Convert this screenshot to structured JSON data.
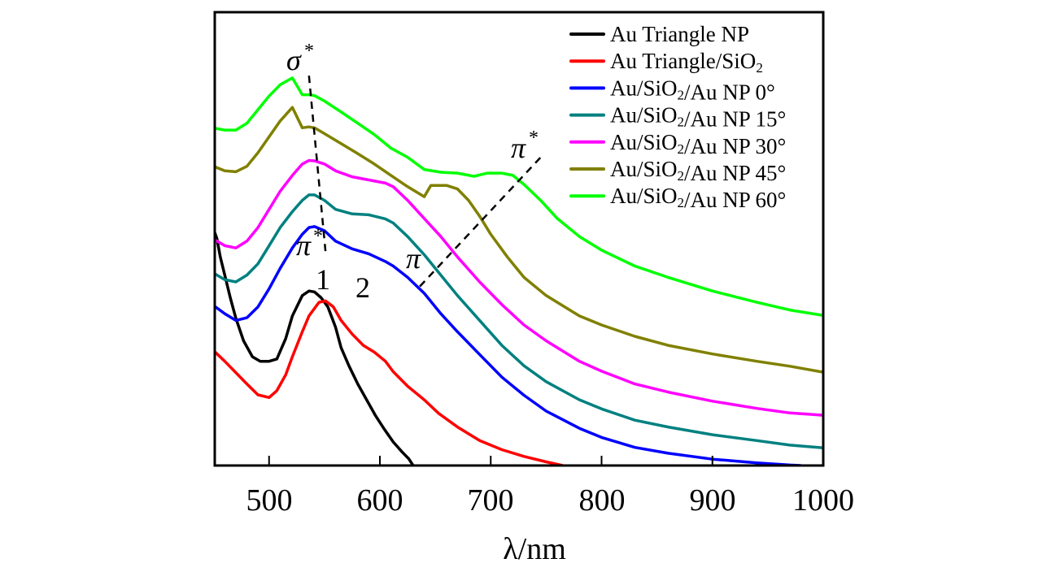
{
  "chart_data": {
    "type": "line",
    "title": "",
    "xlabel": "λ/nm",
    "ylabel": "",
    "xlim": [
      451,
      1000
    ],
    "ylim": [
      0,
      100
    ],
    "xticks": [
      500,
      600,
      700,
      800,
      900,
      1000
    ],
    "xtick_labels": [
      "500",
      "600",
      "700",
      "800",
      "900",
      "1000"
    ],
    "yticks": [],
    "grid": false,
    "legend_position": "top-right",
    "series": [
      {
        "name": "Au Triangle NP",
        "color": "#000000",
        "points": [
          [
            451,
            51.4
          ],
          [
            453,
            50
          ],
          [
            456,
            46
          ],
          [
            460,
            42
          ],
          [
            465,
            37
          ],
          [
            470,
            32.5
          ],
          [
            477,
            27.5
          ],
          [
            485,
            24
          ],
          [
            492,
            23
          ],
          [
            500,
            23
          ],
          [
            507,
            23.5
          ],
          [
            515,
            28
          ],
          [
            521,
            33
          ],
          [
            530,
            37.5
          ],
          [
            536,
            38.5
          ],
          [
            541,
            38.3
          ],
          [
            547,
            37
          ],
          [
            553,
            35
          ],
          [
            560,
            30.5
          ],
          [
            565,
            26
          ],
          [
            572,
            22
          ],
          [
            580,
            18
          ],
          [
            588,
            14.5
          ],
          [
            596,
            11
          ],
          [
            604,
            8
          ],
          [
            612,
            5.2
          ],
          [
            620,
            3
          ],
          [
            626,
            1.5
          ],
          [
            630,
            0
          ]
        ]
      },
      {
        "name": "Au Triangle/SiO2",
        "color": "#ff0000",
        "points": [
          [
            451,
            25.1
          ],
          [
            460,
            23
          ],
          [
            470,
            20.5
          ],
          [
            480,
            18
          ],
          [
            490,
            15.6
          ],
          [
            500,
            15
          ],
          [
            507,
            16.5
          ],
          [
            515,
            20
          ],
          [
            521,
            24
          ],
          [
            530,
            29.5
          ],
          [
            536,
            33
          ],
          [
            545,
            36
          ],
          [
            551,
            36.3
          ],
          [
            558,
            35
          ],
          [
            565,
            32
          ],
          [
            575,
            29
          ],
          [
            585,
            26.5
          ],
          [
            595,
            25
          ],
          [
            605,
            23
          ],
          [
            612,
            20.7
          ],
          [
            625,
            17.5
          ],
          [
            640,
            14.5
          ],
          [
            653,
            11.5
          ],
          [
            670,
            8.5
          ],
          [
            690,
            5.5
          ],
          [
            710,
            3.5
          ],
          [
            730,
            2
          ],
          [
            750,
            0.8
          ],
          [
            765,
            0
          ]
        ]
      },
      {
        "name": "Au/SiO2/Au NP 0°",
        "color": "#0000ff",
        "points": [
          [
            451,
            35.1
          ],
          [
            460,
            33.5
          ],
          [
            470,
            32
          ],
          [
            480,
            32.6
          ],
          [
            490,
            35
          ],
          [
            500,
            39
          ],
          [
            510,
            43.5
          ],
          [
            521,
            48
          ],
          [
            530,
            51
          ],
          [
            536,
            52.5
          ],
          [
            541,
            52.7
          ],
          [
            550,
            51.8
          ],
          [
            560,
            49.5
          ],
          [
            575,
            47.8
          ],
          [
            590,
            46.7
          ],
          [
            605,
            45
          ],
          [
            612,
            44
          ],
          [
            625,
            41.5
          ],
          [
            640,
            38
          ],
          [
            655,
            33.5
          ],
          [
            670,
            29.5
          ],
          [
            690,
            24.5
          ],
          [
            710,
            19.5
          ],
          [
            730,
            15.5
          ],
          [
            750,
            12
          ],
          [
            780,
            8.2
          ],
          [
            800,
            6.2
          ],
          [
            830,
            4
          ],
          [
            860,
            2.7
          ],
          [
            900,
            1.4
          ],
          [
            940,
            0.6
          ],
          [
            970,
            0.1
          ],
          [
            980,
            0
          ]
        ]
      },
      {
        "name": "Au/SiO2/Au NP 15°",
        "color": "#008080",
        "points": [
          [
            451,
            42.3
          ],
          [
            460,
            41
          ],
          [
            470,
            40.5
          ],
          [
            480,
            42
          ],
          [
            490,
            44.5
          ],
          [
            500,
            48.5
          ],
          [
            510,
            52.5
          ],
          [
            521,
            56
          ],
          [
            530,
            58.5
          ],
          [
            536,
            59.7
          ],
          [
            541,
            59.7
          ],
          [
            550,
            58.5
          ],
          [
            560,
            56.5
          ],
          [
            575,
            55.5
          ],
          [
            590,
            55.3
          ],
          [
            605,
            54.4
          ],
          [
            612,
            53.5
          ],
          [
            625,
            50.5
          ],
          [
            640,
            46.5
          ],
          [
            655,
            42
          ],
          [
            670,
            37.5
          ],
          [
            690,
            32
          ],
          [
            710,
            26.5
          ],
          [
            730,
            22
          ],
          [
            750,
            18.5
          ],
          [
            780,
            14.5
          ],
          [
            800,
            12.5
          ],
          [
            830,
            10
          ],
          [
            860,
            8.5
          ],
          [
            900,
            6.8
          ],
          [
            940,
            5.5
          ],
          [
            970,
            4.5
          ],
          [
            1000,
            3.9
          ]
        ]
      },
      {
        "name": "Au/SiO2/Au NP 30°",
        "color": "#ff00ff",
        "points": [
          [
            451,
            49.8
          ],
          [
            460,
            48.5
          ],
          [
            470,
            48
          ],
          [
            480,
            49.5
          ],
          [
            490,
            52.5
          ],
          [
            500,
            56.5
          ],
          [
            510,
            60.5
          ],
          [
            521,
            64
          ],
          [
            530,
            66.5
          ],
          [
            536,
            67.3
          ],
          [
            541,
            67.2
          ],
          [
            550,
            66.5
          ],
          [
            560,
            65
          ],
          [
            575,
            63.7
          ],
          [
            590,
            63
          ],
          [
            605,
            62.3
          ],
          [
            612,
            61.5
          ],
          [
            625,
            58.5
          ],
          [
            640,
            54.5
          ],
          [
            655,
            50.5
          ],
          [
            670,
            46
          ],
          [
            690,
            40.5
          ],
          [
            710,
            35.5
          ],
          [
            730,
            31
          ],
          [
            750,
            27.5
          ],
          [
            780,
            23
          ],
          [
            800,
            20.8
          ],
          [
            830,
            18
          ],
          [
            860,
            16.2
          ],
          [
            900,
            14.2
          ],
          [
            940,
            12.6
          ],
          [
            970,
            11.6
          ],
          [
            1000,
            11.1
          ]
        ]
      },
      {
        "name": "Au/SiO2/Au NP 45°",
        "color": "#808000",
        "points": [
          [
            451,
            65.9
          ],
          [
            460,
            65
          ],
          [
            470,
            64.8
          ],
          [
            480,
            66
          ],
          [
            490,
            69
          ],
          [
            500,
            72.5
          ],
          [
            510,
            76
          ],
          [
            521,
            79
          ],
          [
            530,
            74.5
          ],
          [
            536,
            74.7
          ],
          [
            541,
            74.5
          ],
          [
            550,
            73.2
          ],
          [
            565,
            71
          ],
          [
            580,
            68.8
          ],
          [
            595,
            66.5
          ],
          [
            610,
            64
          ],
          [
            625,
            61.5
          ],
          [
            640,
            59.3
          ],
          [
            646,
            61.8
          ],
          [
            660,
            61.8
          ],
          [
            670,
            61
          ],
          [
            680,
            58.5
          ],
          [
            690,
            55
          ],
          [
            700,
            51
          ],
          [
            715,
            46
          ],
          [
            730,
            41.5
          ],
          [
            750,
            37.5
          ],
          [
            780,
            33
          ],
          [
            800,
            31
          ],
          [
            830,
            28.5
          ],
          [
            860,
            26.5
          ],
          [
            900,
            24.6
          ],
          [
            940,
            23
          ],
          [
            970,
            21.9
          ],
          [
            1000,
            20.6
          ]
        ]
      },
      {
        "name": "Au/SiO2/Au NP 60°",
        "color": "#00ff00",
        "points": [
          [
            451,
            74.4
          ],
          [
            460,
            74
          ],
          [
            470,
            74
          ],
          [
            480,
            75.5
          ],
          [
            490,
            78.5
          ],
          [
            500,
            81.5
          ],
          [
            510,
            84
          ],
          [
            521,
            85.5
          ],
          [
            530,
            81.8
          ],
          [
            536,
            81.8
          ],
          [
            541,
            81.6
          ],
          [
            550,
            80.4
          ],
          [
            565,
            78
          ],
          [
            580,
            75.5
          ],
          [
            595,
            73
          ],
          [
            610,
            70
          ],
          [
            625,
            68
          ],
          [
            640,
            65.3
          ],
          [
            655,
            64.7
          ],
          [
            670,
            64.5
          ],
          [
            685,
            63.8
          ],
          [
            697,
            64.5
          ],
          [
            710,
            64.5
          ],
          [
            720,
            64
          ],
          [
            730,
            62
          ],
          [
            745,
            58.5
          ],
          [
            760,
            54.5
          ],
          [
            780,
            50.5
          ],
          [
            800,
            47.5
          ],
          [
            830,
            44
          ],
          [
            860,
            41.5
          ],
          [
            900,
            38.5
          ],
          [
            940,
            36
          ],
          [
            970,
            34.3
          ],
          [
            1000,
            33.1
          ]
        ]
      }
    ],
    "annotations": {
      "sigma_star": "σ",
      "pi_star_upper": "π",
      "pi_star_lower": "π",
      "pi": "π",
      "star": "*",
      "peak1": "1",
      "peak2": "2"
    },
    "guide_lines": [
      {
        "name": "sigma-star-guide",
        "from": [
          536,
          86
        ],
        "to": [
          551,
          47
        ]
      },
      {
        "name": "pi-pi-star-guide",
        "from": [
          636,
          39.5
        ],
        "to": [
          747,
          68.5
        ]
      }
    ]
  }
}
